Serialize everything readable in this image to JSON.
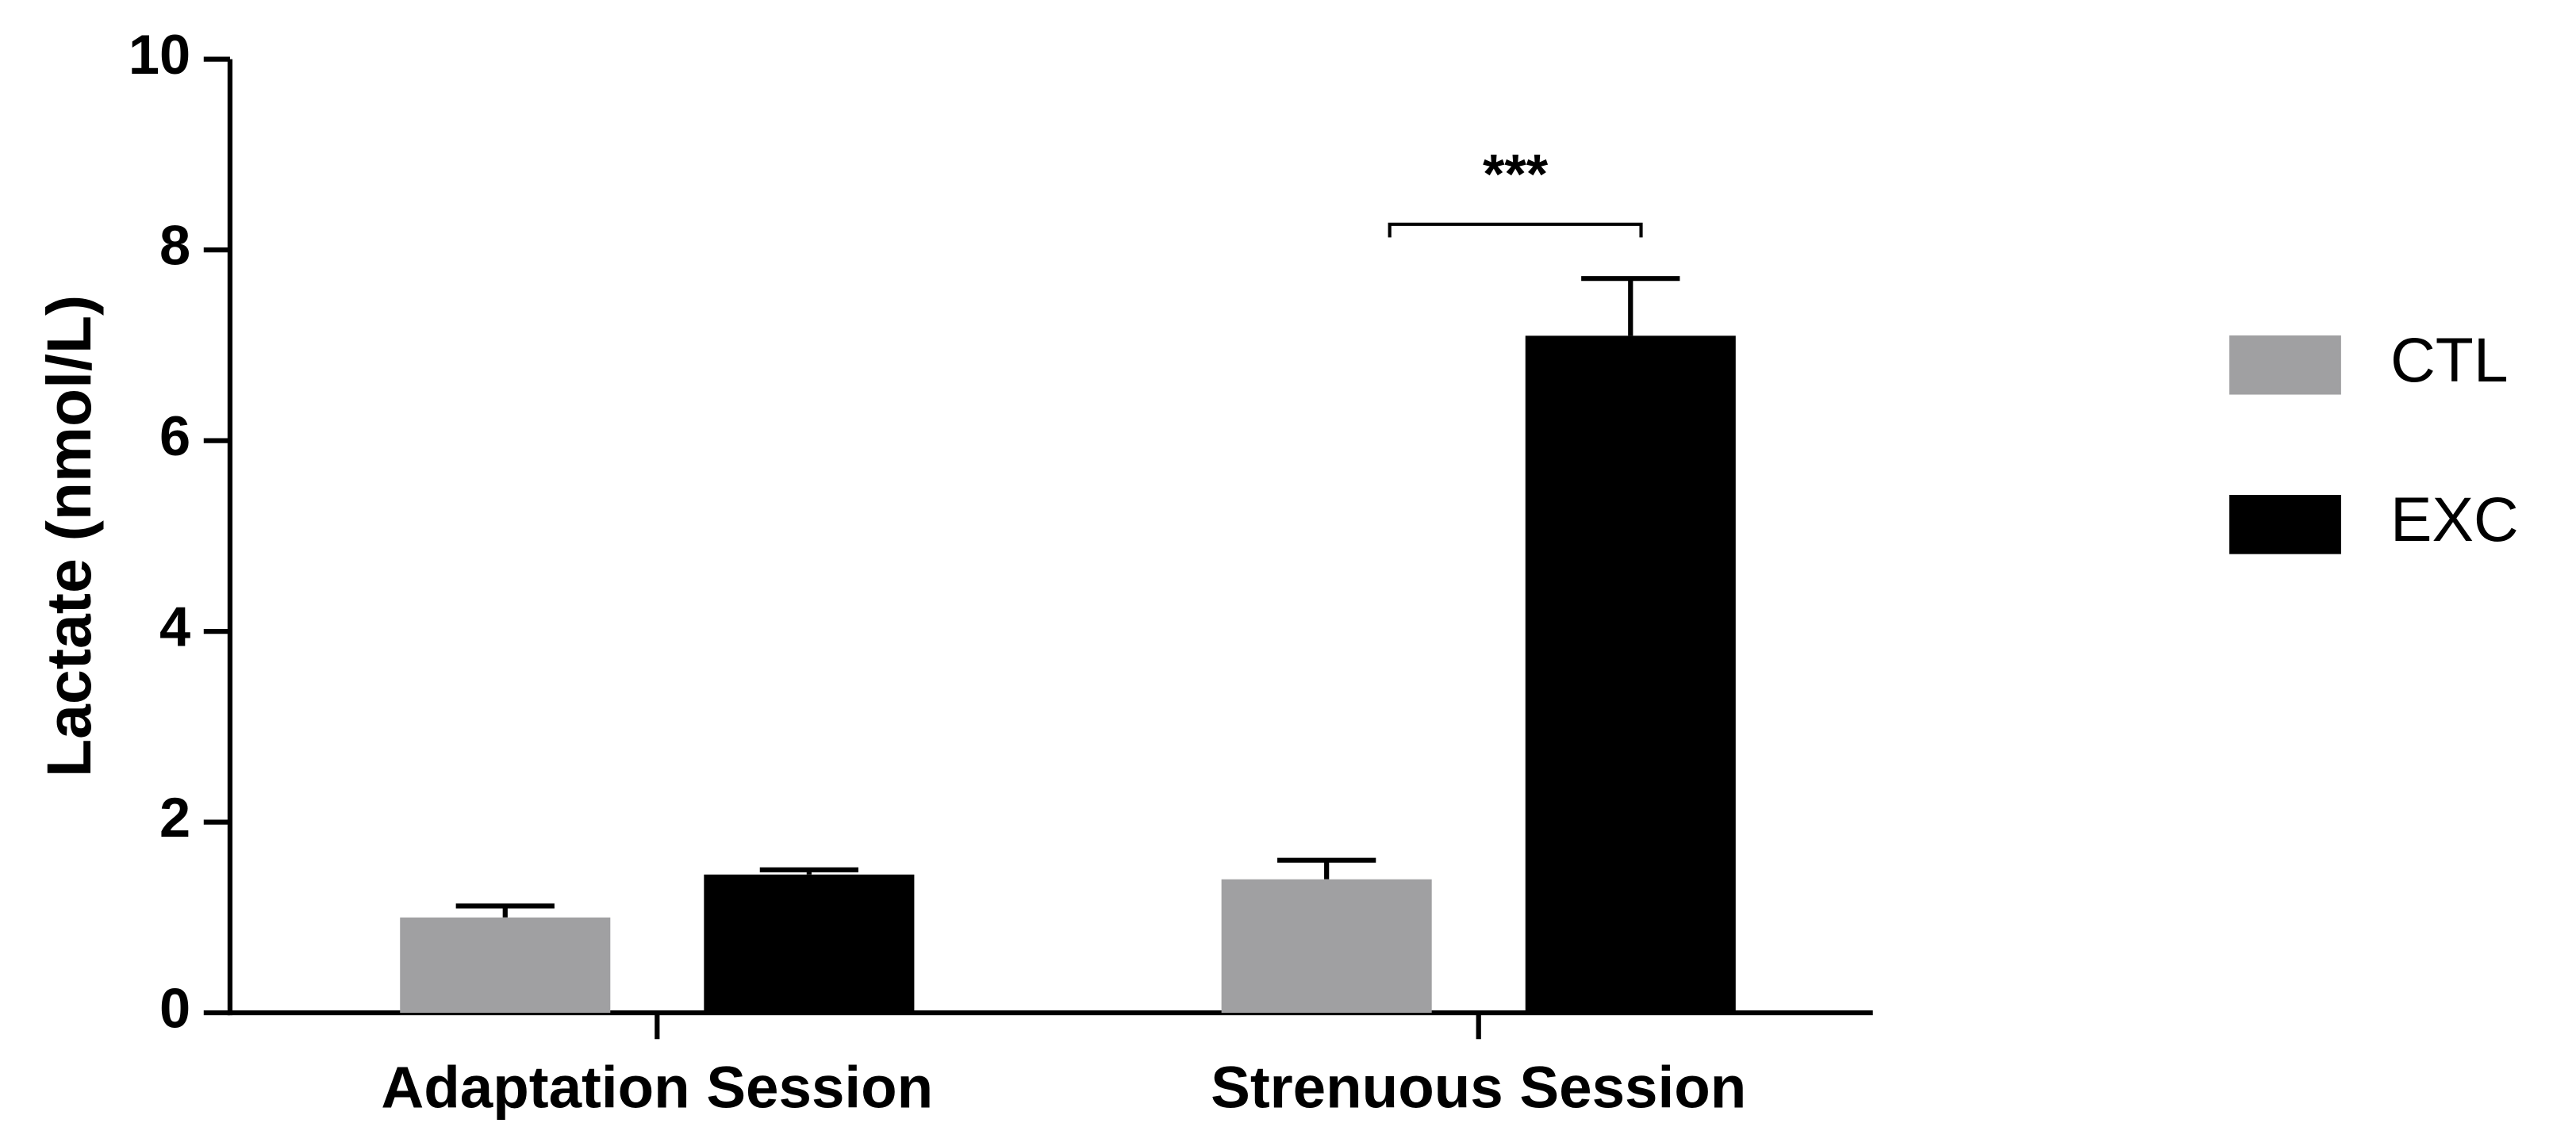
{
  "chart_data": {
    "type": "bar",
    "y_label": "Lactate  (nmol/L)",
    "categories": [
      "Adaptation Session",
      "Strenuous Session"
    ],
    "series": [
      {
        "name": "CTL",
        "color": "#a0a0a2",
        "values": [
          1.0,
          1.4
        ],
        "errors": [
          0.12,
          0.2
        ]
      },
      {
        "name": "EXC",
        "color": "#000000",
        "values": [
          1.45,
          7.1
        ],
        "errors": [
          0.05,
          0.6
        ]
      }
    ],
    "ylim": [
      0,
      10
    ],
    "yticks": [
      0,
      2,
      4,
      6,
      8,
      10
    ],
    "annotation": "***"
  }
}
